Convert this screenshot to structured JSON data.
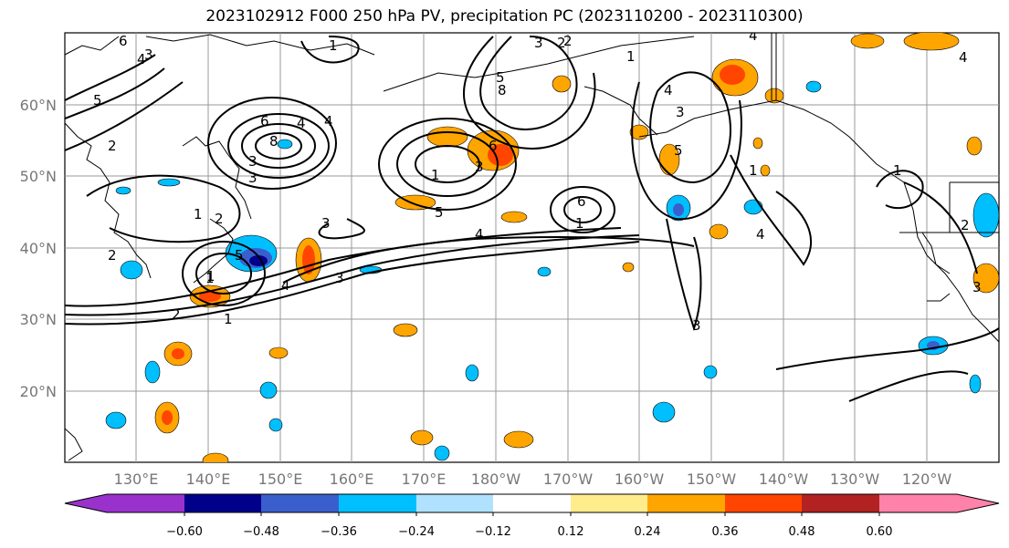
{
  "title": "2023102912 F000 250 hPa PV, precipitation PC (2023110200 - 2023110300)",
  "latitude_labels": [
    "60°N",
    "50°N",
    "40°N",
    "30°N",
    "20°N"
  ],
  "longitude_labels": [
    "130°E",
    "140°E",
    "150°E",
    "160°E",
    "170°E",
    "180°W",
    "170°W",
    "160°W",
    "150°W",
    "140°W",
    "130°W",
    "120°W"
  ],
  "colorbar": {
    "ticks": [
      "−0.60",
      "−0.48",
      "−0.36",
      "−0.24",
      "−0.12",
      "0.12",
      "0.24",
      "0.36",
      "0.48",
      "0.60"
    ],
    "colors": [
      "#9932cc",
      "#00008b",
      "#3a5fcd",
      "#00bfff",
      "#b0e2ff",
      "#ffffff",
      "#ffec8b",
      "#ffa500",
      "#ff4500",
      "#b22222",
      "#ff82ab"
    ]
  },
  "contour_labels": [
    "6",
    "4",
    "3",
    "1",
    "5",
    "2",
    "4",
    "1",
    "3",
    "2",
    "1",
    "8",
    "6",
    "5",
    "1",
    "3",
    "4",
    "8",
    "4",
    "1",
    "6",
    "3",
    "2",
    "1",
    "2",
    "3",
    "5",
    "3",
    "4",
    "5",
    "4",
    "2",
    "1",
    "3",
    "3",
    "4",
    "1",
    "5",
    "6",
    "1",
    "4",
    "3",
    "2",
    "1",
    "4",
    "2",
    "3"
  ]
}
